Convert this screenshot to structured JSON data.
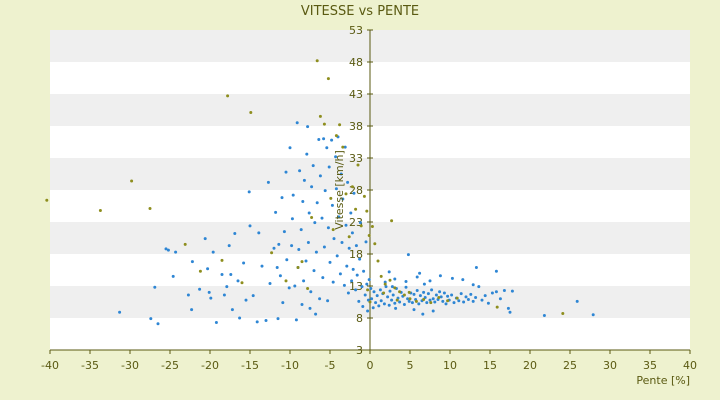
{
  "chart_data": {
    "type": "scatter",
    "title": "VITESSE vs PENTE",
    "xlabel": "Pente [%]",
    "ylabel": "Vitesse [km/h]",
    "xlim": [
      -40,
      40
    ],
    "ylim": [
      3,
      53
    ],
    "x_ticks": [
      -40,
      -35,
      -30,
      -25,
      -20,
      -15,
      -10,
      -5,
      0,
      5,
      10,
      15,
      20,
      25,
      30,
      35,
      40
    ],
    "y_ticks": [
      3,
      8,
      13,
      18,
      23,
      28,
      33,
      38,
      43,
      48,
      53
    ],
    "grid": "horizontal bands",
    "legend": "none",
    "colors": {
      "background": "#eef2cf",
      "band_light": "#ffffff",
      "band_dark": "#efefef",
      "axis": "#5a5a12",
      "series_blue": "#2e86d4",
      "series_olive": "#8e8e1e"
    },
    "series": [
      {
        "color": "#2e86d4",
        "points": [
          [
            -31.3,
            8.9
          ],
          [
            -27.4,
            7.9
          ],
          [
            -26.5,
            7.1
          ],
          [
            -26.9,
            12.8
          ],
          [
            -25.5,
            18.8
          ],
          [
            -25.2,
            18.6
          ],
          [
            -24.6,
            14.5
          ],
          [
            -24.3,
            18.3
          ],
          [
            -22.7,
            11.6
          ],
          [
            -22.2,
            16.8
          ],
          [
            -22.3,
            9.3
          ],
          [
            -21.3,
            12.5
          ],
          [
            -20.6,
            20.4
          ],
          [
            -20.3,
            15.7
          ],
          [
            -20.1,
            12.0
          ],
          [
            -19.9,
            11.1
          ],
          [
            -19.2,
            7.3
          ],
          [
            -19.6,
            18.3
          ],
          [
            -18.5,
            14.8
          ],
          [
            -18.2,
            11.6
          ],
          [
            -17.9,
            12.9
          ],
          [
            -17.6,
            19.3
          ],
          [
            -17.4,
            14.8
          ],
          [
            -17.2,
            9.3
          ],
          [
            -16.9,
            21.2
          ],
          [
            -16.5,
            13.8
          ],
          [
            -16.3,
            8.0
          ],
          [
            -15.8,
            16.6
          ],
          [
            -15.5,
            10.8
          ],
          [
            -15.1,
            27.7
          ],
          [
            -15.0,
            22.4
          ],
          [
            -14.6,
            11.5
          ],
          [
            -14.1,
            7.4
          ],
          [
            -13.9,
            21.3
          ],
          [
            -13.5,
            16.1
          ],
          [
            -13.0,
            7.6
          ],
          [
            -12.7,
            29.2
          ],
          [
            -12.5,
            13.4
          ],
          [
            -12.0,
            18.9
          ],
          [
            -11.8,
            24.5
          ],
          [
            -11.6,
            15.9
          ],
          [
            -11.5,
            7.9
          ],
          [
            -11.4,
            19.5
          ],
          [
            -11.2,
            14.6
          ],
          [
            -11.0,
            26.8
          ],
          [
            -10.9,
            10.4
          ],
          [
            -10.7,
            21.5
          ],
          [
            -10.5,
            30.8
          ],
          [
            -10.4,
            17.1
          ],
          [
            -10.1,
            12.7
          ],
          [
            -10.0,
            34.6
          ],
          [
            -9.8,
            19.3
          ],
          [
            -9.7,
            23.5
          ],
          [
            -9.6,
            27.2
          ],
          [
            -9.4,
            13.0
          ],
          [
            -9.2,
            7.7
          ],
          [
            -9.1,
            38.5
          ],
          [
            -9.0,
            15.9
          ],
          [
            -8.9,
            18.7
          ],
          [
            -8.8,
            31.0
          ],
          [
            -8.6,
            21.8
          ],
          [
            -8.5,
            10.1
          ],
          [
            -8.4,
            26.2
          ],
          [
            -8.3,
            13.8
          ],
          [
            -8.2,
            29.5
          ],
          [
            -8.0,
            16.9
          ],
          [
            -7.9,
            33.6
          ],
          [
            -7.8,
            37.9
          ],
          [
            -7.7,
            19.8
          ],
          [
            -7.6,
            24.4
          ],
          [
            -7.5,
            9.5
          ],
          [
            -7.4,
            12.1
          ],
          [
            -7.3,
            28.5
          ],
          [
            -7.1,
            31.8
          ],
          [
            -7.0,
            15.4
          ],
          [
            -6.9,
            22.9
          ],
          [
            -6.8,
            8.6
          ],
          [
            -6.7,
            18.3
          ],
          [
            -6.6,
            26.0
          ],
          [
            -6.4,
            35.9
          ],
          [
            -6.3,
            11.0
          ],
          [
            -6.2,
            30.2
          ],
          [
            -6.0,
            23.6
          ],
          [
            -5.9,
            14.3
          ],
          [
            -5.8,
            36.0
          ],
          [
            -5.7,
            19.1
          ],
          [
            -5.6,
            27.9
          ],
          [
            -5.4,
            34.6
          ],
          [
            -5.3,
            10.7
          ],
          [
            -5.2,
            22.1
          ],
          [
            -5.1,
            31.6
          ],
          [
            -5.0,
            16.7
          ],
          [
            -4.8,
            35.8
          ],
          [
            -4.7,
            25.6
          ],
          [
            -4.6,
            13.6
          ],
          [
            -4.5,
            20.4
          ],
          [
            -4.3,
            33.2
          ],
          [
            -4.2,
            28.2
          ],
          [
            -4.1,
            17.7
          ],
          [
            -4.0,
            36.3
          ],
          [
            -3.9,
            23.8
          ],
          [
            -3.7,
            14.9
          ],
          [
            -3.6,
            30.5
          ],
          [
            -3.5,
            19.8
          ],
          [
            -3.4,
            26.6
          ],
          [
            -3.2,
            13.1
          ],
          [
            -3.1,
            34.7
          ],
          [
            -3.0,
            22.5
          ],
          [
            -2.9,
            16.1
          ],
          [
            -2.8,
            29.2
          ],
          [
            -2.7,
            11.9
          ],
          [
            -2.6,
            18.9
          ],
          [
            -2.4,
            24.4
          ],
          [
            -2.3,
            13.8
          ],
          [
            -2.2,
            21.3
          ],
          [
            -2.1,
            15.6
          ],
          [
            -2.0,
            27.5
          ],
          [
            -1.8,
            12.4
          ],
          [
            -1.7,
            19.3
          ],
          [
            -1.6,
            14.7
          ],
          [
            -1.4,
            10.6
          ],
          [
            -1.3,
            17.2
          ],
          [
            -1.2,
            22.9
          ],
          [
            -1.0,
            12.9
          ],
          [
            -0.9,
            9.8
          ],
          [
            -0.8,
            15.3
          ],
          [
            -0.6,
            11.6
          ],
          [
            -0.5,
            19.9
          ],
          [
            -0.4,
            13.3
          ],
          [
            -0.3,
            9.1
          ],
          [
            -0.2,
            10.8
          ],
          [
            -0.1,
            14.0
          ],
          [
            0.1,
            12.6
          ],
          [
            0.2,
            11.0
          ],
          [
            0.4,
            9.6
          ],
          [
            0.5,
            12.1
          ],
          [
            0.7,
            10.4
          ],
          [
            0.9,
            11.5
          ],
          [
            1.1,
            9.9
          ],
          [
            1.3,
            12.4
          ],
          [
            1.4,
            10.7
          ],
          [
            1.6,
            11.8
          ],
          [
            1.8,
            10.2
          ],
          [
            2.0,
            12.9
          ],
          [
            2.2,
            11.3
          ],
          [
            2.4,
            10.0
          ],
          [
            2.5,
            12.2
          ],
          [
            2.7,
            10.8
          ],
          [
            2.9,
            11.6
          ],
          [
            3.1,
            10.3
          ],
          [
            3.3,
            12.6
          ],
          [
            3.5,
            11.1
          ],
          [
            3.7,
            10.5
          ],
          [
            3.9,
            12.0
          ],
          [
            4.1,
            11.4
          ],
          [
            4.3,
            10.1
          ],
          [
            4.5,
            12.8
          ],
          [
            4.7,
            11.0
          ],
          [
            4.9,
            10.6
          ],
          [
            5.1,
            11.9
          ],
          [
            5.3,
            10.4
          ],
          [
            5.5,
            11.7
          ],
          [
            5.7,
            10.9
          ],
          [
            5.9,
            12.3
          ],
          [
            6.1,
            10.2
          ],
          [
            6.3,
            11.5
          ],
          [
            6.5,
            10.7
          ],
          [
            6.7,
            12.0
          ],
          [
            6.9,
            11.2
          ],
          [
            7.1,
            10.4
          ],
          [
            7.3,
            11.8
          ],
          [
            7.5,
            10.8
          ],
          [
            7.7,
            12.4
          ],
          [
            7.9,
            11.0
          ],
          [
            8.1,
            10.5
          ],
          [
            8.3,
            11.6
          ],
          [
            8.5,
            10.9
          ],
          [
            8.7,
            12.1
          ],
          [
            8.9,
            11.3
          ],
          [
            9.1,
            10.6
          ],
          [
            9.3,
            11.9
          ],
          [
            9.5,
            10.2
          ],
          [
            9.7,
            11.4
          ],
          [
            9.9,
            10.8
          ],
          [
            10.2,
            11.6
          ],
          [
            10.5,
            10.4
          ],
          [
            10.8,
            11.1
          ],
          [
            11.1,
            10.7
          ],
          [
            11.4,
            11.8
          ],
          [
            11.7,
            10.5
          ],
          [
            12.0,
            11.3
          ],
          [
            12.3,
            10.9
          ],
          [
            12.6,
            11.7
          ],
          [
            12.9,
            10.6
          ],
          [
            13.2,
            11.2
          ],
          [
            13.6,
            12.9
          ],
          [
            14.0,
            10.8
          ],
          [
            14.4,
            11.5
          ],
          [
            14.8,
            10.3
          ],
          [
            15.3,
            11.9
          ],
          [
            15.8,
            12.1
          ],
          [
            16.3,
            11.0
          ],
          [
            16.8,
            12.3
          ],
          [
            17.3,
            9.5
          ],
          [
            17.8,
            12.2
          ],
          [
            2.4,
            15.2
          ],
          [
            3.1,
            14.1
          ],
          [
            4.8,
            17.9
          ],
          [
            6.2,
            15.0
          ],
          [
            7.5,
            13.8
          ],
          [
            8.8,
            14.6
          ],
          [
            10.3,
            14.2
          ],
          [
            11.6,
            14.0
          ],
          [
            12.9,
            13.2
          ],
          [
            13.3,
            15.9
          ],
          [
            4.5,
            13.7
          ],
          [
            5.9,
            14.4
          ],
          [
            2.8,
            12.9
          ],
          [
            1.9,
            13.6
          ],
          [
            6.8,
            13.3
          ],
          [
            15.8,
            15.3
          ],
          [
            17.5,
            8.9
          ],
          [
            21.8,
            8.4
          ],
          [
            25.9,
            10.6
          ],
          [
            27.9,
            8.5
          ],
          [
            3.2,
            9.5
          ],
          [
            5.5,
            9.3
          ],
          [
            6.6,
            8.6
          ],
          [
            7.9,
            9.1
          ]
        ]
      },
      {
        "color": "#8e8e1e",
        "points": [
          [
            -40.4,
            26.4
          ],
          [
            -33.7,
            24.8
          ],
          [
            -29.8,
            29.4
          ],
          [
            -27.5,
            25.1
          ],
          [
            -23.1,
            19.5
          ],
          [
            -21.2,
            15.3
          ],
          [
            -18.5,
            17.0
          ],
          [
            -17.8,
            42.7
          ],
          [
            -16.0,
            13.5
          ],
          [
            -14.9,
            40.1
          ],
          [
            -12.3,
            18.2
          ],
          [
            -10.5,
            13.8
          ],
          [
            -9.0,
            15.9
          ],
          [
            -8.5,
            16.8
          ],
          [
            -7.8,
            12.6
          ],
          [
            -7.3,
            23.7
          ],
          [
            -6.6,
            48.2
          ],
          [
            -6.2,
            39.5
          ],
          [
            -5.7,
            38.3
          ],
          [
            -5.2,
            45.4
          ],
          [
            -4.9,
            26.7
          ],
          [
            -4.6,
            21.8
          ],
          [
            -4.2,
            36.5
          ],
          [
            -3.8,
            38.2
          ],
          [
            -3.4,
            34.7
          ],
          [
            -3.0,
            27.4
          ],
          [
            -2.6,
            20.7
          ],
          [
            -2.2,
            28.5
          ],
          [
            -1.8,
            25.0
          ],
          [
            -1.5,
            31.9
          ],
          [
            -1.1,
            22.4
          ],
          [
            -0.7,
            27.0
          ],
          [
            -0.4,
            24.7
          ],
          [
            -0.1,
            20.9
          ],
          [
            0.3,
            22.3
          ],
          [
            0.6,
            19.6
          ],
          [
            1.0,
            16.9
          ],
          [
            1.4,
            14.5
          ],
          [
            1.9,
            13.3
          ],
          [
            2.5,
            13.9
          ],
          [
            3.1,
            12.7
          ],
          [
            3.7,
            12.1
          ],
          [
            4.3,
            11.6
          ],
          [
            5.0,
            11.0
          ],
          [
            5.8,
            10.6
          ],
          [
            6.7,
            10.9
          ],
          [
            7.6,
            10.4
          ],
          [
            8.6,
            11.2
          ],
          [
            9.7,
            10.7
          ],
          [
            10.9,
            11.1
          ],
          [
            2.7,
            23.2
          ],
          [
            4.9,
            12.0
          ],
          [
            15.9,
            9.7
          ],
          [
            24.1,
            8.7
          ],
          [
            0.0,
            10.5
          ],
          [
            -0.3,
            12.4
          ],
          [
            1.7,
            11.9
          ],
          [
            3.4,
            10.8
          ]
        ]
      }
    ]
  }
}
